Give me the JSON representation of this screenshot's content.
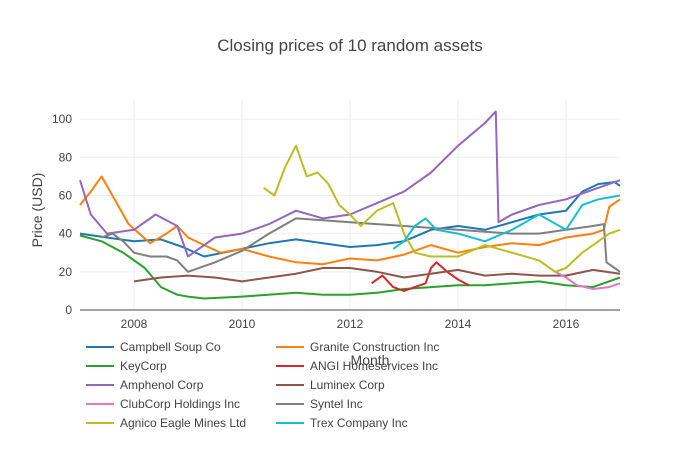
{
  "chart_data": {
    "type": "line",
    "title": "Closing prices of 10 random assets",
    "xlabel": "Month",
    "ylabel": "Price (USD)",
    "xlim": [
      2007.0,
      2017.0
    ],
    "ylim": [
      0,
      110
    ],
    "xticks": [
      2008,
      2010,
      2012,
      2014,
      2016
    ],
    "yticks": [
      0,
      20,
      40,
      60,
      80,
      100
    ],
    "grid": true,
    "legend_position": "bottom",
    "series": [
      {
        "name": "Campbell Soup Co",
        "color": "#1f77b4",
        "x": [
          2007.0,
          2007.5,
          2008.0,
          2008.5,
          2008.9,
          2009.3,
          2010.0,
          2010.5,
          2011.0,
          2011.5,
          2012.0,
          2012.5,
          2013.0,
          2013.5,
          2014.0,
          2014.5,
          2015.0,
          2015.5,
          2016.0,
          2016.3,
          2016.6,
          2016.9,
          2017.0
        ],
        "y": [
          40,
          38,
          36,
          37,
          33,
          28,
          32,
          35,
          37,
          35,
          33,
          34,
          36,
          42,
          44,
          42,
          46,
          50,
          52,
          62,
          66,
          67,
          65
        ]
      },
      {
        "name": "Granite Construction Inc",
        "color": "#ff7f0e",
        "x": [
          2007.0,
          2007.2,
          2007.4,
          2007.6,
          2007.9,
          2008.3,
          2008.6,
          2008.8,
          2009.0,
          2009.3,
          2009.6,
          2010.0,
          2010.5,
          2011.0,
          2011.5,
          2012.0,
          2012.5,
          2013.0,
          2013.5,
          2014.0,
          2014.5,
          2015.0,
          2015.5,
          2016.0,
          2016.5,
          2016.7,
          2016.8,
          2017.0
        ],
        "y": [
          55,
          62,
          70,
          60,
          45,
          35,
          40,
          44,
          38,
          34,
          30,
          32,
          28,
          25,
          24,
          27,
          26,
          29,
          34,
          30,
          33,
          35,
          34,
          38,
          40,
          42,
          54,
          58
        ]
      },
      {
        "name": "KeyCorp",
        "color": "#2ca02c",
        "x": [
          2007.0,
          2007.4,
          2007.8,
          2008.2,
          2008.5,
          2008.8,
          2009.0,
          2009.3,
          2010.0,
          2011.0,
          2011.5,
          2012.0,
          2012.5,
          2013.0,
          2013.5,
          2014.0,
          2014.5,
          2015.0,
          2015.5,
          2016.0,
          2016.5,
          2017.0
        ],
        "y": [
          39,
          36,
          30,
          22,
          12,
          8,
          7,
          6,
          7,
          9,
          8,
          8,
          9,
          11,
          12,
          13,
          13,
          14,
          15,
          13,
          12,
          17
        ]
      },
      {
        "name": "ANGI Homeservices Inc",
        "color": "#d62728",
        "x": [
          2012.4,
          2012.6,
          2012.8,
          2013.0,
          2013.2,
          2013.4,
          2013.5,
          2013.6,
          2013.8,
          2014.0,
          2014.2
        ],
        "y": [
          14,
          18,
          12,
          10,
          12,
          14,
          22,
          25,
          20,
          16,
          13
        ]
      },
      {
        "name": "Amphenol Corp",
        "color": "#9467bd",
        "x": [
          2007.0,
          2007.2,
          2007.5,
          2008.0,
          2008.4,
          2008.8,
          2009.0,
          2009.5,
          2010.0,
          2010.5,
          2011.0,
          2011.5,
          2012.0,
          2012.5,
          2013.0,
          2013.5,
          2014.0,
          2014.5,
          2014.7,
          2014.75,
          2015.0,
          2015.5,
          2016.0,
          2016.5,
          2017.0
        ],
        "y": [
          68,
          50,
          40,
          42,
          50,
          44,
          28,
          38,
          40,
          45,
          52,
          48,
          50,
          56,
          62,
          72,
          86,
          98,
          104,
          46,
          50,
          55,
          58,
          63,
          68
        ]
      },
      {
        "name": "Luminex Corp",
        "color": "#8c564b",
        "x": [
          2008.0,
          2008.5,
          2009.0,
          2009.5,
          2010.0,
          2010.5,
          2011.0,
          2011.5,
          2012.0,
          2012.5,
          2013.0,
          2013.5,
          2014.0,
          2014.5,
          2015.0,
          2015.5,
          2016.0,
          2016.5,
          2017.0
        ],
        "y": [
          15,
          17,
          18,
          17,
          15,
          17,
          19,
          22,
          22,
          20,
          17,
          19,
          21,
          18,
          19,
          18,
          18,
          21,
          19
        ]
      },
      {
        "name": "ClubCorp Holdings Inc",
        "color": "#e377c2",
        "x": [
          2015.8,
          2016.0,
          2016.2,
          2016.5,
          2016.8,
          2017.0
        ],
        "y": [
          20,
          17,
          13,
          11,
          12,
          14
        ]
      },
      {
        "name": "Syntel Inc",
        "color": "#7f7f7f",
        "x": [
          2007.4,
          2007.6,
          2007.8,
          2008.0,
          2008.3,
          2008.6,
          2008.8,
          2009.0,
          2009.5,
          2010.0,
          2010.5,
          2011.0,
          2011.5,
          2012.0,
          2012.5,
          2013.0,
          2013.5,
          2014.0,
          2014.5,
          2015.0,
          2015.5,
          2016.0,
          2016.5,
          2016.7,
          2016.75,
          2016.9,
          2017.0
        ],
        "y": [
          38,
          40,
          36,
          30,
          28,
          28,
          26,
          20,
          25,
          31,
          40,
          48,
          47,
          46,
          45,
          44,
          43,
          42,
          41,
          40,
          40,
          42,
          44,
          45,
          25,
          22,
          20
        ]
      },
      {
        "name": "Agnico Eagle Mines Ltd",
        "color": "#bcbd22",
        "x": [
          2010.4,
          2010.6,
          2010.8,
          2011.0,
          2011.2,
          2011.4,
          2011.6,
          2011.8,
          2012.0,
          2012.2,
          2012.5,
          2012.8,
          2013.0,
          2013.2,
          2013.5,
          2014.0,
          2014.5,
          2015.0,
          2015.5,
          2015.8,
          2016.0,
          2016.3,
          2016.6,
          2016.8,
          2017.0
        ],
        "y": [
          64,
          60,
          75,
          86,
          70,
          72,
          66,
          55,
          50,
          44,
          52,
          56,
          40,
          30,
          28,
          28,
          34,
          30,
          26,
          20,
          22,
          30,
          36,
          40,
          42
        ]
      },
      {
        "name": "Trex Company Inc",
        "color": "#17becf",
        "x": [
          2012.8,
          2013.0,
          2013.2,
          2013.4,
          2013.6,
          2014.0,
          2014.5,
          2015.0,
          2015.5,
          2016.0,
          2016.3,
          2016.6,
          2017.0
        ],
        "y": [
          32,
          36,
          44,
          48,
          42,
          40,
          36,
          42,
          50,
          42,
          55,
          58,
          60
        ]
      }
    ]
  }
}
